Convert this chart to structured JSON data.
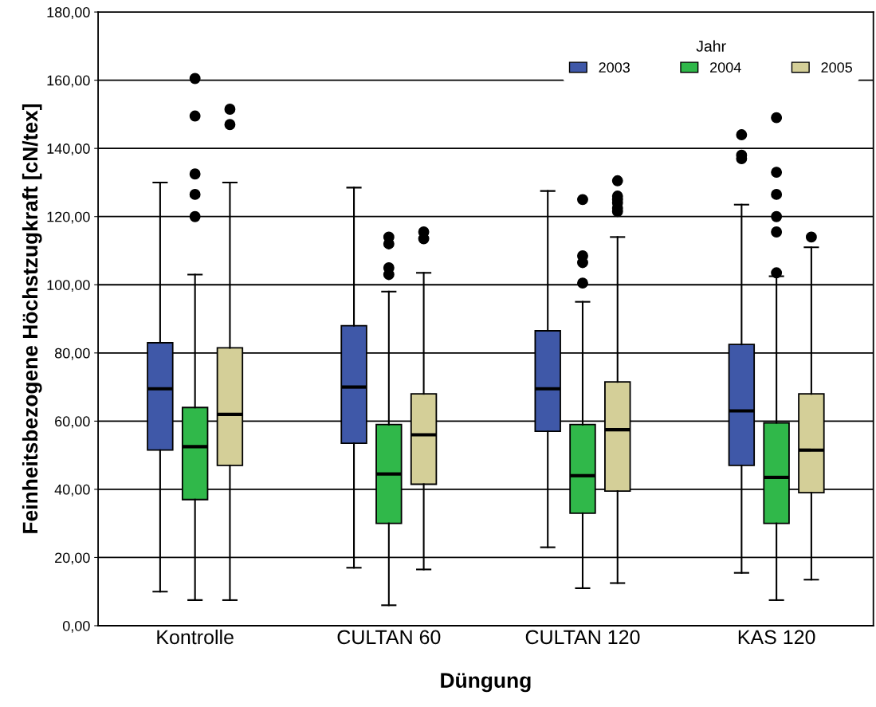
{
  "chart_data": {
    "type": "box",
    "xlabel": "Düngung",
    "ylabel": "Feinheitsbezogene Höchstzugkraft [cN/tex]",
    "legend_title": "Jahr",
    "legend": "top right",
    "grid": "y",
    "categories": [
      "Kontrolle",
      "CULTAN 60",
      "CULTAN 120",
      "KAS 120"
    ],
    "ylim": [
      0,
      180
    ],
    "yticks": [
      {
        "value": 0,
        "label": "0,00"
      },
      {
        "value": 20,
        "label": "20,00"
      },
      {
        "value": 40,
        "label": "40,00"
      },
      {
        "value": 60,
        "label": "60,00"
      },
      {
        "value": 80,
        "label": "80,00"
      },
      {
        "value": 100,
        "label": "100,00"
      },
      {
        "value": 120,
        "label": "120,00"
      },
      {
        "value": 140,
        "label": "140,00"
      },
      {
        "value": 160,
        "label": "160,00"
      },
      {
        "value": 180,
        "label": "180,00"
      }
    ],
    "series": [
      {
        "name": "2003",
        "color": "#3f58a8",
        "boxes": [
          {
            "low": 10,
            "q1": 51.5,
            "median": 69.5,
            "q3": 83,
            "high": 130
          },
          {
            "low": 17,
            "q1": 53.5,
            "median": 70,
            "q3": 88,
            "high": 128.5
          },
          {
            "low": 23,
            "q1": 57,
            "median": 69.5,
            "q3": 86.5,
            "high": 127.5
          },
          {
            "low": 15.5,
            "q1": 47,
            "median": 63,
            "q3": 82.5,
            "high": 123.5,
            "outliers": [
              137,
              138,
              144
            ]
          }
        ]
      },
      {
        "name": "2004",
        "color": "#30b84a",
        "boxes": [
          {
            "low": 7.5,
            "q1": 37,
            "median": 52.5,
            "q3": 64,
            "high": 103,
            "outliers": [
              120,
              126.5,
              132.5,
              149.5,
              160.5
            ]
          },
          {
            "low": 6,
            "q1": 30,
            "median": 44.5,
            "q3": 59,
            "high": 98,
            "outliers": [
              103,
              105,
              112,
              114
            ]
          },
          {
            "low": 11,
            "q1": 33,
            "median": 44,
            "q3": 59,
            "high": 95,
            "outliers": [
              100.5,
              106.5,
              108.5,
              125
            ]
          },
          {
            "low": 7.5,
            "q1": 30,
            "median": 43.5,
            "q3": 59.5,
            "high": 102.5,
            "outliers": [
              103.5,
              115.5,
              120,
              126.5,
              133,
              149
            ]
          }
        ]
      },
      {
        "name": "2005",
        "color": "#d4cf98",
        "boxes": [
          {
            "low": 7.5,
            "q1": 47,
            "median": 62,
            "q3": 81.5,
            "high": 130,
            "outliers": [
              147,
              151.5
            ]
          },
          {
            "low": 16.5,
            "q1": 41.5,
            "median": 56,
            "q3": 68,
            "high": 103.5,
            "outliers": [
              113.5,
              115.5
            ]
          },
          {
            "low": 12.5,
            "q1": 39.5,
            "median": 57.5,
            "q3": 71.5,
            "high": 114,
            "outliers": [
              121.5,
              122.5,
              124,
              125,
              126,
              130.5
            ]
          },
          {
            "low": 13.5,
            "q1": 39,
            "median": 51.5,
            "q3": 68,
            "high": 111,
            "outliers": [
              114
            ]
          }
        ]
      }
    ]
  }
}
